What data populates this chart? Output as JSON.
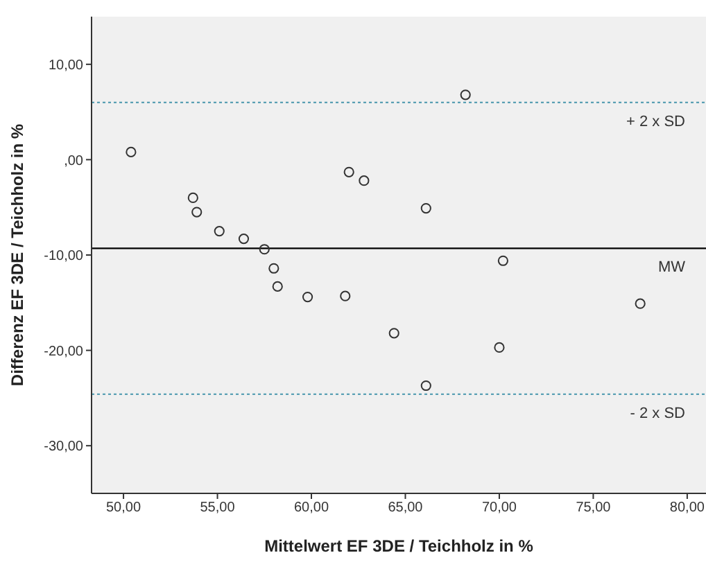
{
  "chart_data": {
    "type": "scatter",
    "xlabel": "Mittelwert EF 3DE / Teichholz in %",
    "ylabel": "Differenz EF 3DE / Teichholz in %",
    "x": [
      50.4,
      53.7,
      53.9,
      55.1,
      56.4,
      57.5,
      58.0,
      58.2,
      59.8,
      61.8,
      62.0,
      62.8,
      64.4,
      66.1,
      66.1,
      68.2,
      70.2,
      70.0,
      77.5
    ],
    "series": [
      {
        "color": "#333333",
        "values": [
          0.8,
          -4.0,
          -5.5,
          -7.5,
          -8.3,
          -9.4,
          -11.4,
          -13.3,
          -14.4,
          -14.3,
          -1.3,
          -2.2,
          -18.2,
          -5.1,
          -23.7,
          6.8,
          -10.6,
          -19.7,
          -15.1
        ]
      }
    ],
    "marker": "circle",
    "xlim": [
      48.3,
      81
    ],
    "ylim": [
      -35,
      15
    ],
    "xticks": [
      {
        "value": 50,
        "label": "50,00"
      },
      {
        "value": 55,
        "label": "55,00"
      },
      {
        "value": 60,
        "label": "60,00"
      },
      {
        "value": 65,
        "label": "65,00"
      },
      {
        "value": 70,
        "label": "70,00"
      },
      {
        "value": 75,
        "label": "75,00"
      },
      {
        "value": 80,
        "label": "80,00"
      }
    ],
    "yticks": [
      {
        "value": -30,
        "label": "-30,00"
      },
      {
        "value": -20,
        "label": "-20,00"
      },
      {
        "value": -10,
        "label": "-10,00"
      },
      {
        "value": 0,
        "label": ",00"
      },
      {
        "value": 10,
        "label": "10,00"
      }
    ],
    "ref_lines": [
      {
        "axis": "y",
        "value": 6.0,
        "label": "+ 2 x SD",
        "color": "#5aa0b4",
        "line_style": "dotted"
      },
      {
        "axis": "y",
        "value": -9.3,
        "label": "MW",
        "color": "#000000",
        "line_style": "solid"
      },
      {
        "axis": "y",
        "value": -24.6,
        "label": "- 2 x SD",
        "color": "#5aa0b4",
        "line_style": "dotted"
      }
    ],
    "grid": false,
    "legend": false
  }
}
